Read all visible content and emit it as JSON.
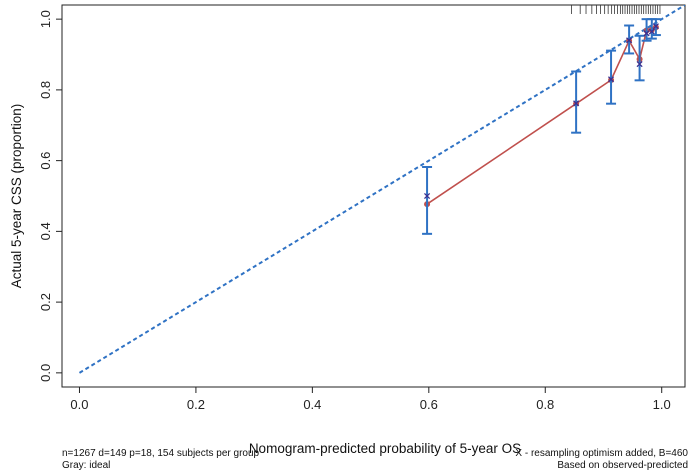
{
  "chart_data": {
    "type": "calibration",
    "xlabel": "Nomogram-predicted probability of 5-year OS",
    "ylabel": "Actual 5-year CSS (proportion)",
    "xlim": [
      -0.03,
      1.04
    ],
    "ylim": [
      -0.04,
      1.04
    ],
    "xticks": [
      "0.0",
      "0.2",
      "0.4",
      "0.6",
      "0.8",
      "1.0"
    ],
    "yticks": [
      "0.0",
      "0.2",
      "0.4",
      "0.6",
      "0.8",
      "1.0"
    ],
    "ideal_line": {
      "from": [
        0,
        0
      ],
      "to": [
        1.04,
        1.04
      ],
      "color": "#2f72c4"
    },
    "apparent": {
      "color": "#c0504d",
      "points": [
        {
          "x": 0.597,
          "y": 0.477
        },
        {
          "x": 0.853,
          "y": 0.761
        },
        {
          "x": 0.913,
          "y": 0.828
        },
        {
          "x": 0.944,
          "y": 0.939
        },
        {
          "x": 0.962,
          "y": 0.887
        },
        {
          "x": 0.974,
          "y": 0.968
        },
        {
          "x": 0.983,
          "y": 0.97
        },
        {
          "x": 0.99,
          "y": 0.977
        }
      ]
    },
    "bias_corrected": {
      "color": "#2f72c4",
      "points": [
        {
          "x": 0.597,
          "y": 0.5,
          "lo": 0.393,
          "hi": 0.582
        },
        {
          "x": 0.853,
          "y": 0.762,
          "lo": 0.679,
          "hi": 0.852
        },
        {
          "x": 0.913,
          "y": 0.83,
          "lo": 0.761,
          "hi": 0.911
        },
        {
          "x": 0.944,
          "y": 0.94,
          "lo": 0.903,
          "hi": 0.982
        },
        {
          "x": 0.962,
          "y": 0.873,
          "lo": 0.827,
          "hi": 0.953
        },
        {
          "x": 0.974,
          "y": 0.96,
          "lo": 0.939,
          "hi": 1.0
        },
        {
          "x": 0.983,
          "y": 0.965,
          "lo": 0.945,
          "hi": 1.0
        },
        {
          "x": 0.99,
          "y": 0.98,
          "lo": 0.955,
          "hi": 1.0
        }
      ]
    },
    "rug_x": [
      0.845,
      0.86,
      0.87,
      0.88,
      0.888,
      0.895,
      0.902,
      0.908,
      0.914,
      0.919,
      0.924,
      0.929,
      0.933,
      0.937,
      0.941,
      0.945,
      0.949,
      0.953,
      0.957,
      0.961,
      0.965,
      0.969,
      0.973,
      0.977,
      0.981,
      0.985,
      0.989,
      0.993,
      0.997
    ],
    "notes": {
      "left_line1": "n=1267 d=149 p=18, 154 subjects per group",
      "left_line2": "Gray: ideal",
      "right_line1": "X - resampling optimism added, B=460",
      "right_line2": "Based on observed-predicted"
    }
  }
}
